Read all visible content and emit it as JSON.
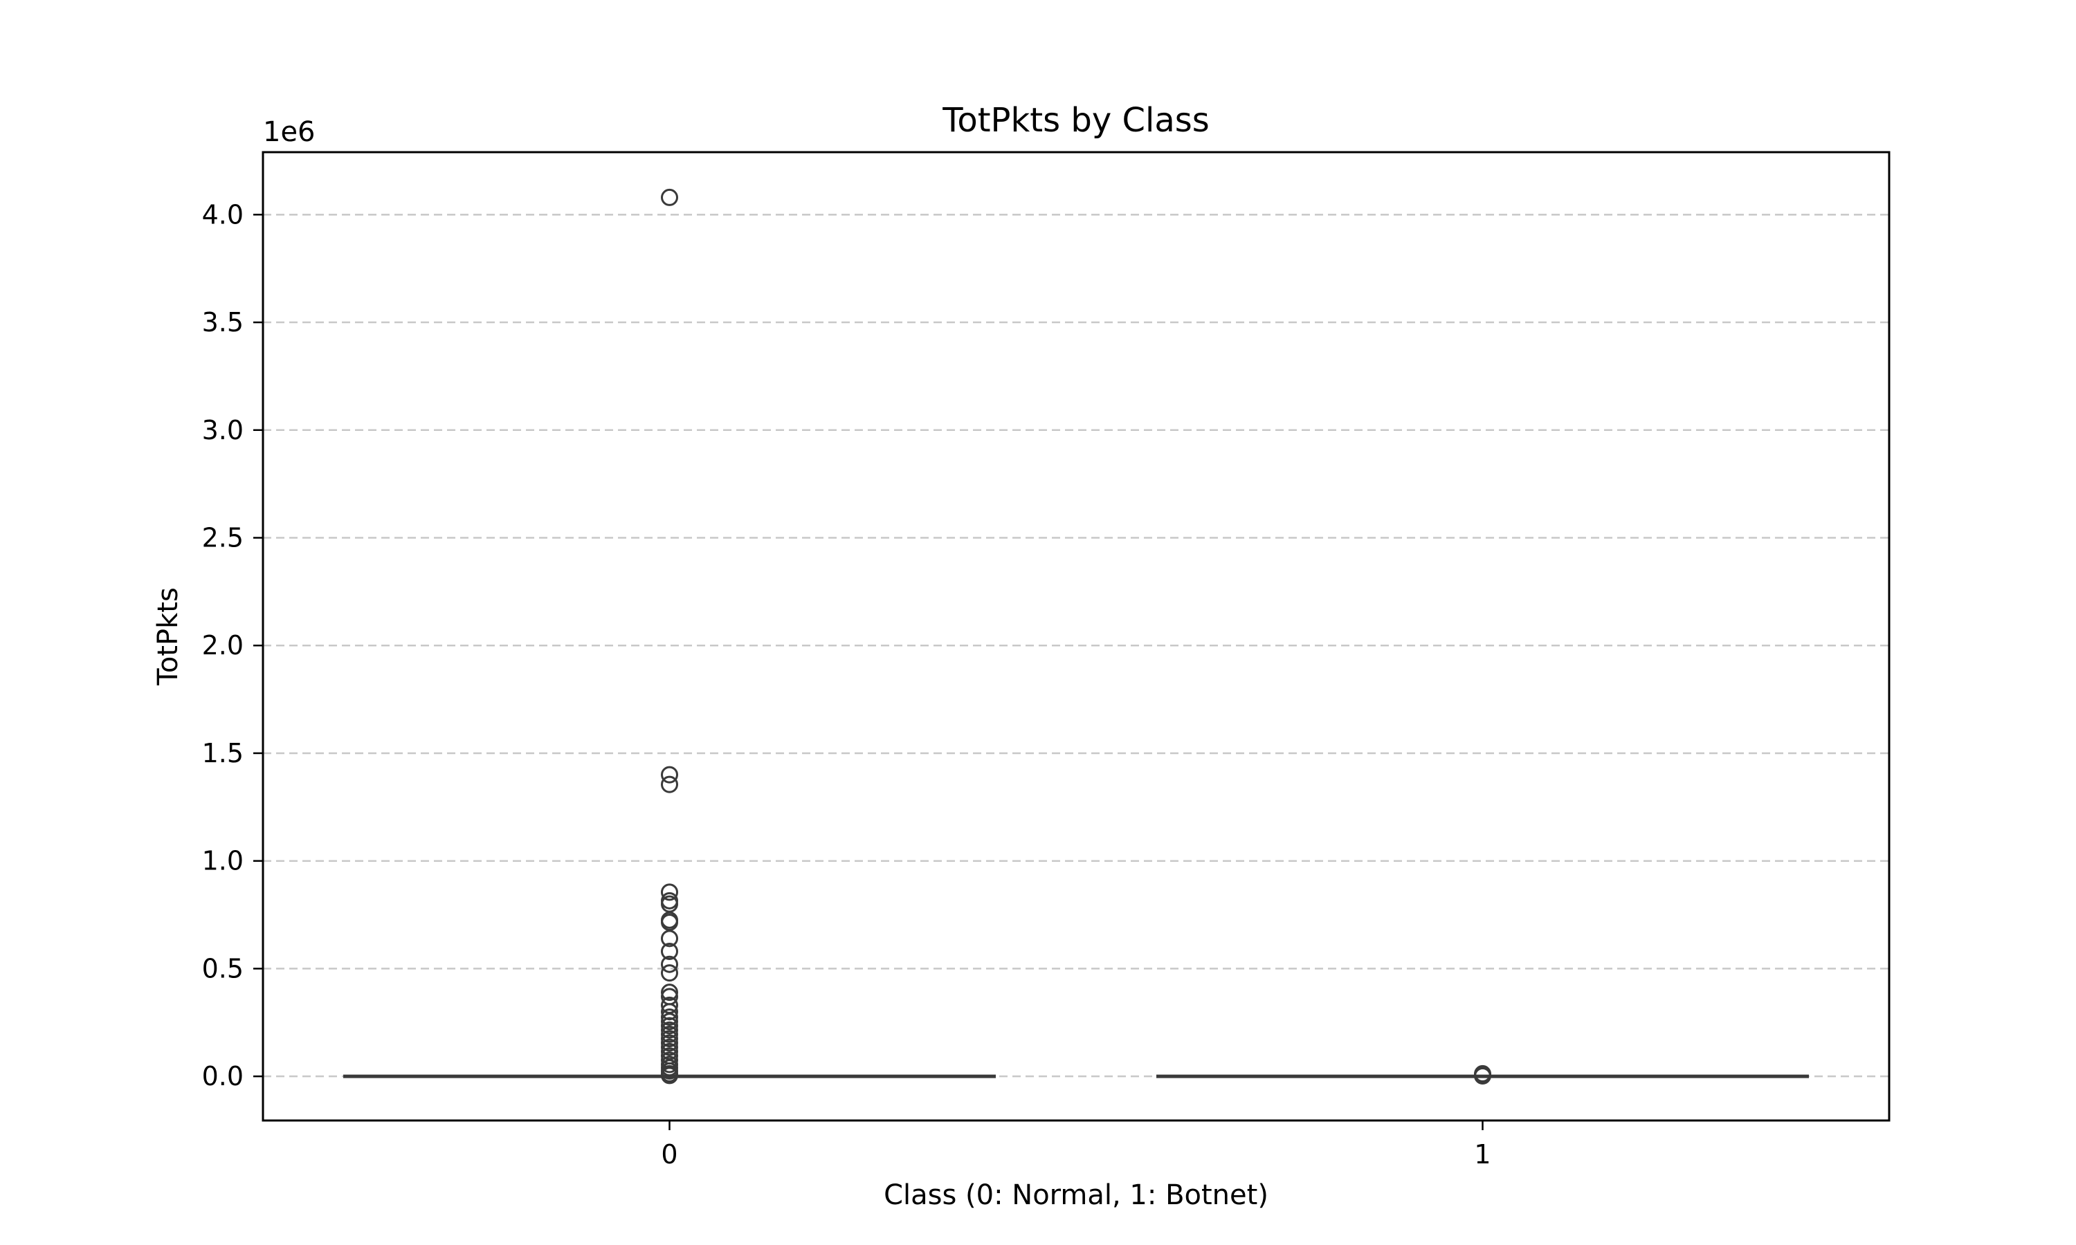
{
  "chart_data": {
    "type": "boxplot",
    "title": "TotPkts by Class",
    "xlabel": "Class (0: Normal, 1: Botnet)",
    "ylabel": "TotPkts",
    "y_offset_label": "1e6",
    "categories": [
      "0",
      "1"
    ],
    "yticks": [
      "0.0",
      "0.5",
      "1.0",
      "1.5",
      "2.0",
      "2.5",
      "3.0",
      "3.5",
      "4.0"
    ],
    "ytick_values": [
      0,
      500000,
      1000000,
      1500000,
      2000000,
      2500000,
      3000000,
      3500000,
      4000000
    ],
    "ylim": [
      -205000,
      4290000
    ],
    "grid": "horizontal-dashed",
    "legend": "none",
    "colors": {
      "box": "#3a3a3a",
      "grid": "#c8c8c8",
      "axes": "#000000"
    },
    "series": [
      {
        "category": "0",
        "median": 0,
        "q1": 0,
        "q3": 0,
        "whisker_low": 0,
        "whisker_high": 0,
        "outliers": [
          4080000,
          1400000,
          1355000,
          855000,
          815000,
          800000,
          725000,
          715000,
          640000,
          580000,
          520000,
          480000,
          390000,
          370000,
          330000,
          300000,
          275000,
          255000,
          235000,
          215000,
          195000,
          175000,
          155000,
          135000,
          115000,
          95000,
          75000,
          55000,
          40000,
          25000,
          12000,
          4000
        ]
      },
      {
        "category": "1",
        "median": 0,
        "q1": 0,
        "q3": 0,
        "whisker_low": 0,
        "whisker_high": 0,
        "outliers": [
          12000,
          6000,
          2000
        ]
      }
    ]
  }
}
